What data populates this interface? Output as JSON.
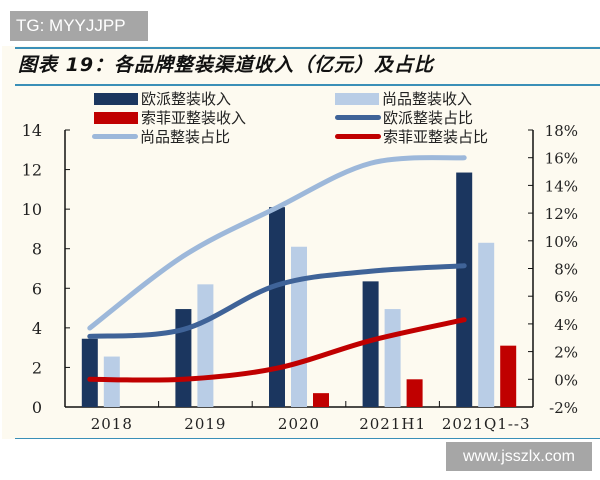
{
  "watermarks": {
    "top_left": "TG: MYYJJPP",
    "bottom_right": "www.jsszlx.com"
  },
  "chart_data": {
    "type": "bar+line",
    "title": "图表 19：各品牌整装渠道收入（亿元）及占比",
    "categories": [
      "2018",
      "2019",
      "2020",
      "2021H1",
      "2021Q1--3"
    ],
    "left_axis": {
      "ylim": [
        0,
        14
      ],
      "ticks": [
        "0",
        "2",
        "4",
        "6",
        "8",
        "10",
        "12",
        "14"
      ]
    },
    "right_axis": {
      "ylim": [
        -2,
        18
      ],
      "ticks": [
        "-2%",
        "0%",
        "2%",
        "4%",
        "6%",
        "8%",
        "10%",
        "12%",
        "14%",
        "16%",
        "18%"
      ]
    },
    "bar_series": [
      {
        "name": "欧派整装收入",
        "color": "#1b365f",
        "values": [
          3.45,
          4.95,
          10.1,
          6.35,
          11.85
        ]
      },
      {
        "name": "尚品整装收入",
        "color": "#b9cde6",
        "values": [
          2.55,
          6.2,
          8.1,
          4.95,
          8.3
        ]
      },
      {
        "name": "索菲亚整装收入",
        "color": "#c00000",
        "values": [
          null,
          null,
          0.7,
          1.4,
          3.1
        ]
      }
    ],
    "line_series": [
      {
        "name": "欧派整装占比",
        "color": "#3f6398",
        "values": [
          3.1,
          3.6,
          6.8,
          7.8,
          8.2
        ]
      },
      {
        "name": "尚品整装占比",
        "color": "#9db8da",
        "values": [
          3.7,
          8.9,
          12.4,
          15.6,
          16.0
        ]
      },
      {
        "name": "索菲亚整装占比",
        "color": "#c00000",
        "values": [
          0.0,
          0.0,
          0.8,
          2.8,
          4.3
        ]
      }
    ],
    "grid": false,
    "legend_placement": "top"
  }
}
